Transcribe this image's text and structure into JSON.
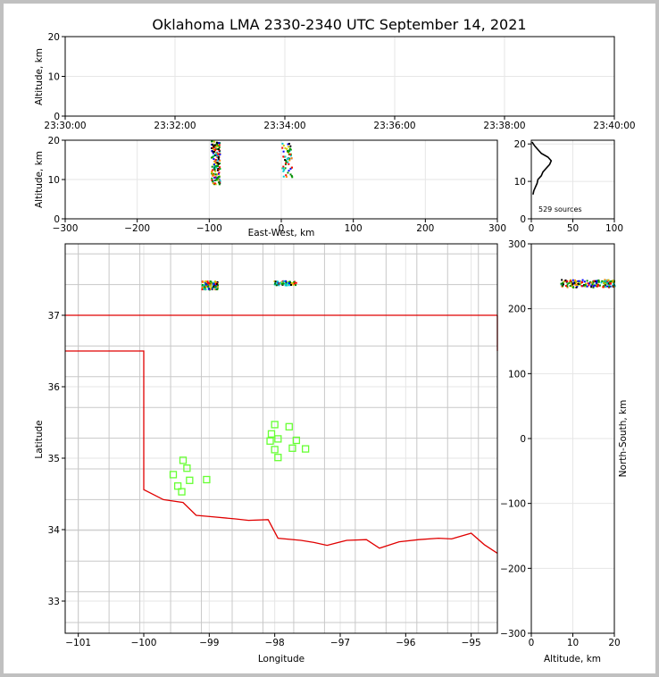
{
  "title": "Oklahoma LMA 2330-2340 UTC September 14, 2021",
  "source_count_label": "529 sources",
  "colors": {
    "state_border": "#e00000",
    "county_lines": "#c8c8c8",
    "stations": "#66ff33",
    "grid": "#e6e6e6",
    "profile": "#000000"
  },
  "chart_data": [
    {
      "panel": "time-height",
      "type": "scatter",
      "xlabel": "",
      "ylabel": "Altitude, km",
      "xlim": [
        "23:30:00",
        "23:40:00"
      ],
      "ylim": [
        0,
        20
      ],
      "xticks": [
        "23:30:00",
        "23:32:00",
        "23:34:00",
        "23:36:00",
        "23:38:00",
        "23:40:00"
      ],
      "yticks": [
        "0",
        "10",
        "20"
      ],
      "grid": true,
      "points": []
    },
    {
      "panel": "east-west-altitude",
      "type": "scatter",
      "xlabel": "East-West, km",
      "ylabel": "Altitude, km",
      "xlim": [
        -300,
        300
      ],
      "ylim": [
        0,
        20
      ],
      "xticks": [
        "−300",
        "−200",
        "−100",
        "0",
        "100",
        "200",
        "300"
      ],
      "yticks": [
        "0",
        "10",
        "20"
      ],
      "grid": true,
      "clusters": [
        {
          "x_center": -92,
          "x_spread": 6,
          "y_min": 9,
          "y_max": 20
        },
        {
          "x_center": 7,
          "x_spread": 5,
          "y_min": 10.5,
          "y_max": 19.5
        }
      ]
    },
    {
      "panel": "altitude-histogram",
      "type": "line",
      "xlabel": "",
      "ylabel": "",
      "xlim": [
        0,
        100
      ],
      "ylim": [
        0,
        21
      ],
      "xticks": [
        "0",
        "50",
        "100"
      ],
      "yticks": [
        "0",
        "10",
        "20"
      ],
      "grid": true,
      "profile": [
        {
          "alt": 6.5,
          "count": 2
        },
        {
          "alt": 7.5,
          "count": 3
        },
        {
          "alt": 8.5,
          "count": 5
        },
        {
          "alt": 9.5,
          "count": 7
        },
        {
          "alt": 10.5,
          "count": 8
        },
        {
          "alt": 11.5,
          "count": 12
        },
        {
          "alt": 12.5,
          "count": 14
        },
        {
          "alt": 13.5,
          "count": 18
        },
        {
          "alt": 14.5,
          "count": 22
        },
        {
          "alt": 15.5,
          "count": 24
        },
        {
          "alt": 16.5,
          "count": 20
        },
        {
          "alt": 17.5,
          "count": 12
        },
        {
          "alt": 18.5,
          "count": 8
        },
        {
          "alt": 19.5,
          "count": 4
        },
        {
          "alt": 20.5,
          "count": 1
        }
      ]
    },
    {
      "panel": "plan-view-map",
      "type": "scatter",
      "xlabel": "Longitude",
      "ylabel": "Latitude",
      "xlim": [
        -101.2,
        -94.6
      ],
      "ylim": [
        32.55,
        38.0
      ],
      "xticks": [
        "−101",
        "−100",
        "−99",
        "−98",
        "−97",
        "−96",
        "−95"
      ],
      "yticks": [
        "33",
        "34",
        "35",
        "36",
        "37"
      ],
      "grid": true,
      "clusters": [
        {
          "lon_center": -99.0,
          "lon_spread": 0.12,
          "lat_center": 37.43,
          "lat_spread": 0.06
        },
        {
          "lon_center": -97.85,
          "lon_spread": 0.17,
          "lat_center": 37.46,
          "lat_spread": 0.03
        }
      ],
      "stations": [
        {
          "lon": -98.0,
          "lat": 35.47
        },
        {
          "lon": -97.78,
          "lat": 35.44
        },
        {
          "lon": -98.05,
          "lat": 35.34
        },
        {
          "lon": -97.95,
          "lat": 35.27
        },
        {
          "lon": -98.07,
          "lat": 35.24
        },
        {
          "lon": -97.67,
          "lat": 35.25
        },
        {
          "lon": -98.0,
          "lat": 35.12
        },
        {
          "lon": -97.73,
          "lat": 35.14
        },
        {
          "lon": -97.53,
          "lat": 35.13
        },
        {
          "lon": -97.95,
          "lat": 35.01
        },
        {
          "lon": -99.4,
          "lat": 34.97
        },
        {
          "lon": -99.34,
          "lat": 34.86
        },
        {
          "lon": -99.55,
          "lat": 34.77
        },
        {
          "lon": -99.3,
          "lat": 34.69
        },
        {
          "lon": -99.04,
          "lat": 34.7
        },
        {
          "lon": -99.48,
          "lat": 34.61
        },
        {
          "lon": -99.42,
          "lat": 34.53
        }
      ]
    },
    {
      "panel": "north-south-altitude",
      "type": "scatter",
      "xlabel": "Altitude, km",
      "ylabel": "North-South, km",
      "xlim": [
        0,
        20
      ],
      "ylim": [
        -300,
        300
      ],
      "xticks": [
        "0",
        "10",
        "20"
      ],
      "yticks": [
        "−300",
        "−200",
        "−100",
        "0",
        "100",
        "200",
        "300"
      ],
      "grid": true,
      "clusters": [
        {
          "alt_min": 7,
          "alt_max": 20,
          "ns_center": 240,
          "ns_spread": 6
        }
      ]
    }
  ]
}
